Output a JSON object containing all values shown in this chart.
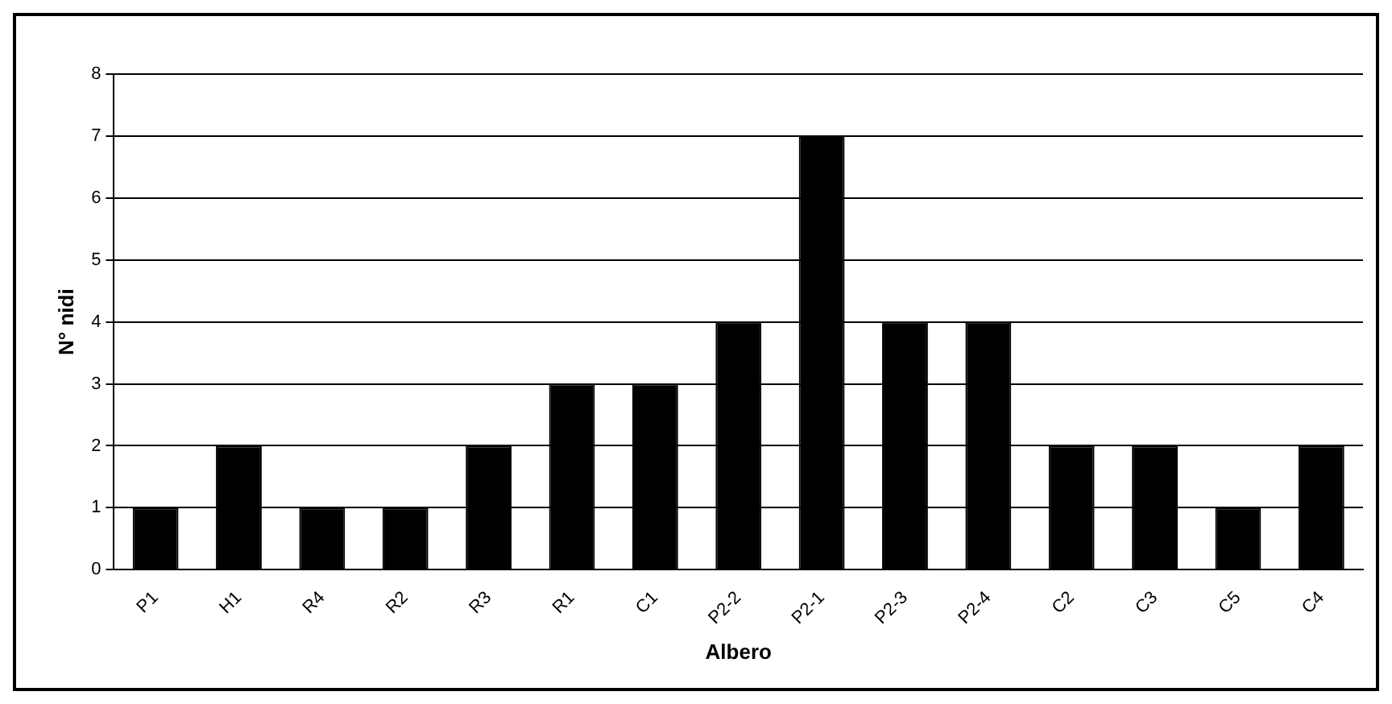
{
  "chart_data": {
    "type": "bar",
    "xlabel": "Albero",
    "ylabel": "N° nidi",
    "categories": [
      "P1",
      "H1",
      "R4",
      "R2",
      "R3",
      "R1",
      "C1",
      "P2-2",
      "P2-1",
      "P2-3",
      "P2-4",
      "C2",
      "C3",
      "C5",
      "C4"
    ],
    "values": [
      1,
      2,
      1,
      1,
      2,
      3,
      3,
      4,
      7,
      4,
      4,
      2,
      2,
      1,
      2
    ],
    "color": "#000000",
    "ylim": [
      0,
      8
    ],
    "yticks": [
      0,
      1,
      2,
      3,
      4,
      5,
      6,
      7,
      8
    ],
    "grid": "y"
  }
}
